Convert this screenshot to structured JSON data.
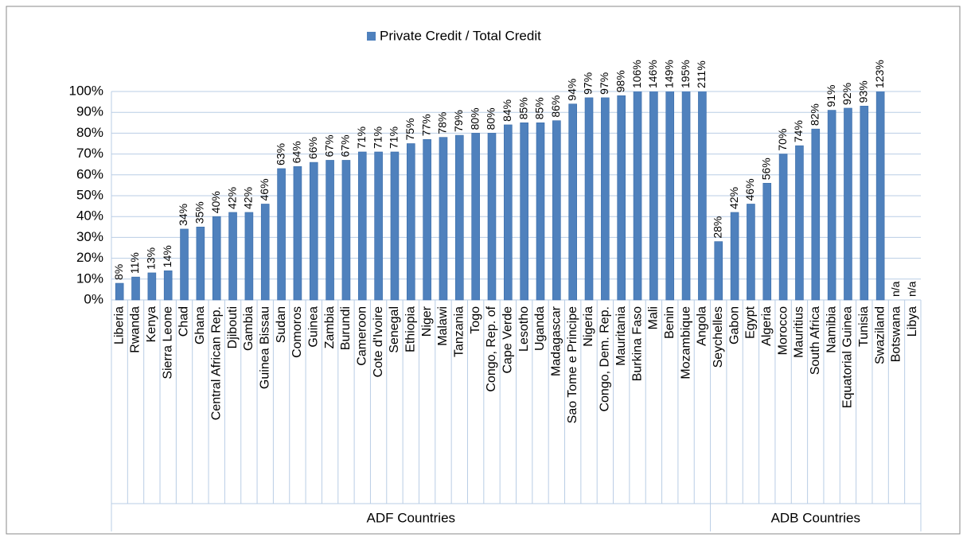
{
  "chart_data": {
    "type": "bar",
    "series_name": "Private Credit / Total Credit",
    "color": "#4f81bd",
    "ylim": [
      0,
      100
    ],
    "yticks": [
      {
        "value": 0,
        "label": "0%"
      },
      {
        "value": 10,
        "label": "10%"
      },
      {
        "value": 20,
        "label": "20%"
      },
      {
        "value": 30,
        "label": "30%"
      },
      {
        "value": 40,
        "label": "40%"
      },
      {
        "value": 50,
        "label": "50%"
      },
      {
        "value": 60,
        "label": "60%"
      },
      {
        "value": 70,
        "label": "70%"
      },
      {
        "value": 80,
        "label": "80%"
      },
      {
        "value": 90,
        "label": "90%"
      },
      {
        "value": 100,
        "label": "100%"
      }
    ],
    "grid": true,
    "groups": [
      {
        "name": "ADF Countries",
        "categories": [
          "Liberia",
          "Rwanda",
          "Kenya",
          "Sierra Leone",
          "Chad",
          "Ghana",
          "Central African Rep.",
          "Djibouti",
          "Gambia",
          "Guinea Bissau",
          "Sudan",
          "Comoros",
          "Guinea",
          "Zambia",
          "Burundi",
          "Cameroon",
          "Cote d'Ivoire",
          "Senegal",
          "Ethiopia",
          "Niger",
          "Malawi",
          "Tanzania",
          "Togo",
          "Congo, Rep. of",
          "Cape Verde",
          "Lesotho",
          "Uganda",
          "Madagascar",
          "Sao Tome e Principe",
          "Nigeria",
          "Congo, Dem. Rep.",
          "Mauritania",
          "Burkina Faso",
          "Mali",
          "Benin",
          "Mozambique",
          "Angola"
        ],
        "values": [
          8,
          11,
          13,
          14,
          34,
          35,
          40,
          42,
          42,
          46,
          63,
          64,
          66,
          67,
          67,
          71,
          71,
          71,
          75,
          77,
          78,
          79,
          80,
          80,
          84,
          85,
          85,
          86,
          94,
          97,
          97,
          98,
          106,
          146,
          149,
          195,
          211
        ],
        "value_labels": [
          "8%",
          "11%",
          "13%",
          "14%",
          "34%",
          "35%",
          "40%",
          "42%",
          "42%",
          "46%",
          "63%",
          "64%",
          "66%",
          "67%",
          "67%",
          "71%",
          "71%",
          "71%",
          "75%",
          "77%",
          "78%",
          "79%",
          "80%",
          "80%",
          "84%",
          "85%",
          "85%",
          "86%",
          "94%",
          "97%",
          "97%",
          "98%",
          "106%",
          "146%",
          "149%",
          "195%",
          "211%"
        ]
      },
      {
        "name": "ADB Countries",
        "categories": [
          "Seychelles",
          "Gabon",
          "Egypt",
          "Algeria",
          "Morocco",
          "Mauritius",
          "South Africa",
          "Namibia",
          "Equatorial Guinea",
          "Tunisia",
          "Swaziland",
          "Botswana",
          "Libya"
        ],
        "values": [
          28,
          42,
          46,
          56,
          70,
          74,
          82,
          91,
          92,
          93,
          123,
          null,
          null
        ],
        "value_labels": [
          "28%",
          "42%",
          "46%",
          "56%",
          "70%",
          "74%",
          "82%",
          "91%",
          "92%",
          "93%",
          "123%",
          "n/a",
          "n/a"
        ]
      }
    ]
  }
}
